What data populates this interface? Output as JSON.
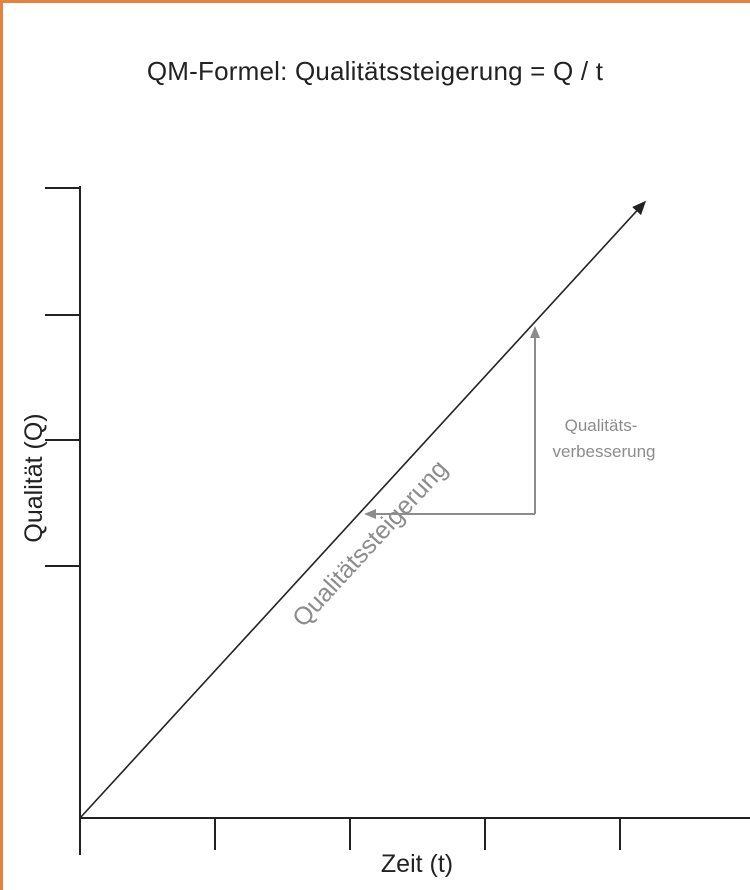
{
  "title": "QM-Formel: Qualitätssteigerung = Q / t",
  "y_axis_label": "Qualität (Q)",
  "x_axis_label": "Zeit (t)",
  "diagonal_label": "Qualitätssteigerung",
  "improvement_label_line1": "Qualitäts-",
  "improvement_label_line2": "verbesserung",
  "colors": {
    "border": "#e8823a",
    "axis": "#222222",
    "annotation": "#8c8c8c"
  }
}
